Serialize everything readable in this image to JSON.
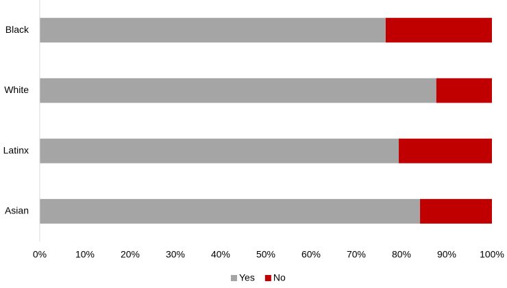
{
  "chart_data": {
    "type": "stacked-barh",
    "categories": [
      "Black",
      "White",
      "Latinx",
      "Asian"
    ],
    "series": [
      {
        "name": "Yes",
        "color": "#a5a5a5",
        "values": [
          76.5,
          87.7,
          79.4,
          84.1
        ]
      },
      {
        "name": "No",
        "color": "#c00000",
        "values": [
          23.5,
          12.3,
          20.6,
          15.9
        ]
      }
    ],
    "xlim": [
      0,
      100
    ],
    "xticks": [
      {
        "value": 0,
        "label": "0%"
      },
      {
        "value": 10,
        "label": "10%"
      },
      {
        "value": 20,
        "label": "20%"
      },
      {
        "value": 30,
        "label": "30%"
      },
      {
        "value": 40,
        "label": "40%"
      },
      {
        "value": 50,
        "label": "50%"
      },
      {
        "value": 60,
        "label": "60%"
      },
      {
        "value": 70,
        "label": "70%"
      },
      {
        "value": 80,
        "label": "80%"
      },
      {
        "value": 90,
        "label": "90%"
      },
      {
        "value": 100,
        "label": "100%"
      }
    ],
    "grid": false,
    "legend": "bottom"
  }
}
